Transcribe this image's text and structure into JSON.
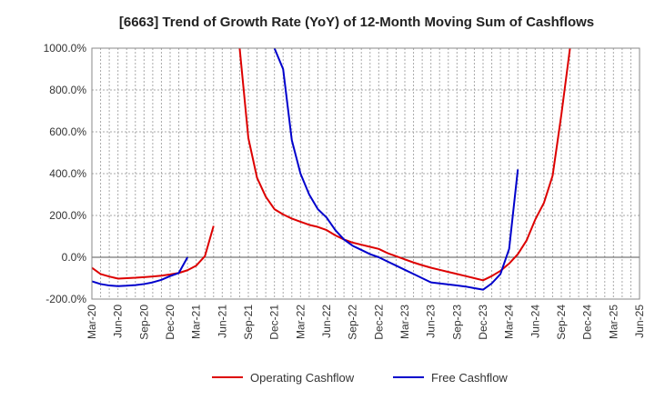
{
  "chart_data": {
    "type": "line",
    "title": "[6663]  Trend of Growth Rate (YoY) of 12-Month Moving Sum of Cashflows",
    "xlabel": "",
    "ylabel": "",
    "ylim": [
      -200,
      1000
    ],
    "yticks": [
      -200,
      0,
      200,
      400,
      600,
      800,
      1000
    ],
    "ytick_labels": [
      "-200.0%",
      "0.0%",
      "200.0%",
      "400.0%",
      "600.0%",
      "800.0%",
      "1000.0%"
    ],
    "xlim": [
      "2020-03",
      "2025-06"
    ],
    "xtick_labels": [
      "Mar-20",
      "Jun-20",
      "Sep-20",
      "Dec-20",
      "Mar-21",
      "Jun-21",
      "Sep-21",
      "Dec-21",
      "Mar-22",
      "Jun-22",
      "Sep-22",
      "Dec-22",
      "Mar-23",
      "Jun-23",
      "Sep-23",
      "Dec-23",
      "Mar-24",
      "Jun-24",
      "Sep-24",
      "Dec-24",
      "Mar-25",
      "Jun-25"
    ],
    "grid": true,
    "legend_position": "bottom",
    "series": [
      {
        "name": "Operating Cashflow",
        "color": "#dd0000",
        "points": [
          [
            "2020-03",
            -50
          ],
          [
            "2020-04",
            -80
          ],
          [
            "2020-05",
            -92
          ],
          [
            "2020-06",
            -102
          ],
          [
            "2020-07",
            -100
          ],
          [
            "2020-08",
            -98
          ],
          [
            "2020-09",
            -95
          ],
          [
            "2020-10",
            -92
          ],
          [
            "2020-11",
            -88
          ],
          [
            "2020-12",
            -82
          ],
          [
            "2021-01",
            -75
          ],
          [
            "2021-02",
            -62
          ],
          [
            "2021-03",
            -40
          ],
          [
            "2021-04",
            5
          ],
          [
            "2021-05",
            150
          ],
          null,
          [
            "2021-08",
            1000
          ],
          [
            "2021-09",
            570
          ],
          [
            "2021-10",
            380
          ],
          [
            "2021-11",
            290
          ],
          [
            "2021-12",
            230
          ],
          [
            "2022-01",
            205
          ],
          [
            "2022-02",
            185
          ],
          [
            "2022-03",
            170
          ],
          [
            "2022-04",
            155
          ],
          [
            "2022-05",
            145
          ],
          [
            "2022-06",
            130
          ],
          [
            "2022-07",
            105
          ],
          [
            "2022-08",
            85
          ],
          [
            "2022-09",
            70
          ],
          [
            "2022-10",
            60
          ],
          [
            "2022-11",
            50
          ],
          [
            "2022-12",
            40
          ],
          [
            "2023-01",
            20
          ],
          [
            "2023-02",
            5
          ],
          [
            "2023-03",
            -10
          ],
          [
            "2023-04",
            -25
          ],
          [
            "2023-05",
            -38
          ],
          [
            "2023-06",
            -50
          ],
          [
            "2023-07",
            -60
          ],
          [
            "2023-08",
            -70
          ],
          [
            "2023-09",
            -80
          ],
          [
            "2023-10",
            -90
          ],
          [
            "2023-11",
            -100
          ],
          [
            "2023-12",
            -110
          ],
          [
            "2024-01",
            -90
          ],
          [
            "2024-02",
            -65
          ],
          [
            "2024-03",
            -30
          ],
          [
            "2024-04",
            15
          ],
          [
            "2024-05",
            80
          ],
          [
            "2024-06",
            180
          ],
          [
            "2024-07",
            260
          ],
          [
            "2024-08",
            390
          ],
          [
            "2024-09",
            680
          ],
          [
            "2024-10",
            1000
          ]
        ]
      },
      {
        "name": "Free Cashflow",
        "color": "#0000cc",
        "points": [
          [
            "2020-03",
            -115
          ],
          [
            "2020-04",
            -128
          ],
          [
            "2020-05",
            -135
          ],
          [
            "2020-06",
            -138
          ],
          [
            "2020-07",
            -136
          ],
          [
            "2020-08",
            -133
          ],
          [
            "2020-09",
            -128
          ],
          [
            "2020-10",
            -120
          ],
          [
            "2020-11",
            -108
          ],
          [
            "2020-12",
            -90
          ],
          [
            "2021-01",
            -75
          ],
          [
            "2021-02",
            0
          ],
          null,
          [
            "2021-12",
            1000
          ],
          [
            "2022-01",
            900
          ],
          [
            "2022-02",
            560
          ],
          [
            "2022-03",
            400
          ],
          [
            "2022-04",
            300
          ],
          [
            "2022-05",
            230
          ],
          [
            "2022-06",
            190
          ],
          [
            "2022-07",
            130
          ],
          [
            "2022-08",
            85
          ],
          [
            "2022-09",
            55
          ],
          [
            "2022-10",
            35
          ],
          [
            "2022-11",
            15
          ],
          [
            "2022-12",
            0
          ],
          [
            "2023-01",
            -20
          ],
          [
            "2023-02",
            -40
          ],
          [
            "2023-03",
            -60
          ],
          [
            "2023-04",
            -80
          ],
          [
            "2023-05",
            -100
          ],
          [
            "2023-06",
            -120
          ],
          [
            "2023-07",
            -125
          ],
          [
            "2023-08",
            -130
          ],
          [
            "2023-09",
            -135
          ],
          [
            "2023-10",
            -140
          ],
          [
            "2023-11",
            -148
          ],
          [
            "2023-12",
            -155
          ],
          [
            "2024-01",
            -125
          ],
          [
            "2024-02",
            -80
          ],
          [
            "2024-03",
            40
          ],
          [
            "2024-04",
            420
          ]
        ]
      }
    ]
  }
}
